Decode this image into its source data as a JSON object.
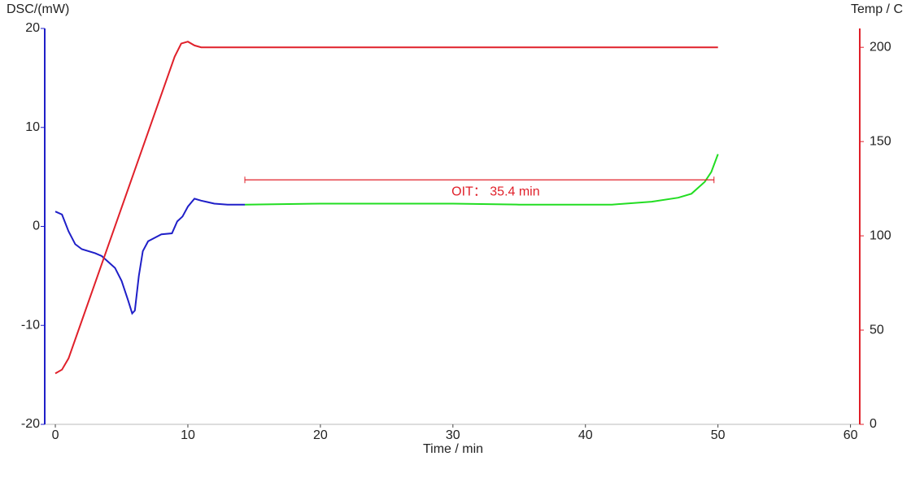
{
  "chart_data": {
    "type": "line",
    "y_label": "DSC/(mW)",
    "y2_label": "Temp / C",
    "x_label": "Time / min",
    "xlim": [
      -0.8,
      60.7
    ],
    "xticks": [
      0,
      10,
      20,
      30,
      40,
      50,
      60
    ],
    "ylim": [
      -20,
      20
    ],
    "yticks": [
      20,
      10,
      0,
      -10,
      -20
    ],
    "y2lim": [
      0,
      210
    ],
    "y2ticks": [
      0,
      50,
      100,
      150,
      200
    ],
    "y_color": "#1f1fc8",
    "y2_color": "#e0202a",
    "series": [
      {
        "color": "#1f1fc8",
        "x": [
          0,
          0.5,
          1,
          1.5,
          2,
          3,
          3.5,
          4,
          4.5,
          5,
          5.5,
          5.8,
          6,
          6.3,
          6.6,
          7,
          8,
          8.8,
          9.2,
          9.6,
          10,
          10.5,
          11,
          12,
          13,
          14.3
        ],
        "values": [
          1.5,
          1.2,
          -0.5,
          -1.8,
          -2.3,
          -2.7,
          -3.0,
          -3.6,
          -4.2,
          -5.5,
          -7.5,
          -8.8,
          -8.5,
          -5,
          -2.5,
          -1.5,
          -0.8,
          -0.7,
          0.5,
          1.0,
          2.0,
          2.8,
          2.6,
          2.3,
          2.2,
          2.2
        ]
      },
      {
        "color": "#22dd22",
        "x": [
          14.3,
          20,
          25,
          30,
          35,
          40,
          42,
          45,
          47,
          48,
          49,
          49.5,
          50
        ],
        "values": [
          2.2,
          2.3,
          2.3,
          2.3,
          2.2,
          2.2,
          2.2,
          2.5,
          2.9,
          3.3,
          4.5,
          5.5,
          7.3
        ]
      },
      {
        "color": "#e0202a",
        "axis": "y2",
        "x": [
          0,
          0.5,
          1,
          2,
          4,
          6,
          8,
          9,
          9.5,
          10,
          10.5,
          11,
          12,
          50
        ],
        "values": [
          27,
          29,
          35,
          55,
          95,
          135,
          175,
          195,
          202,
          203,
          201,
          200,
          200,
          200
        ]
      }
    ],
    "annotations": [
      {
        "text": "OIT：  35.4 min",
        "color": "#e0202a",
        "x_start": 14.3,
        "x_end": 49.7,
        "y": 4.7
      }
    ]
  }
}
